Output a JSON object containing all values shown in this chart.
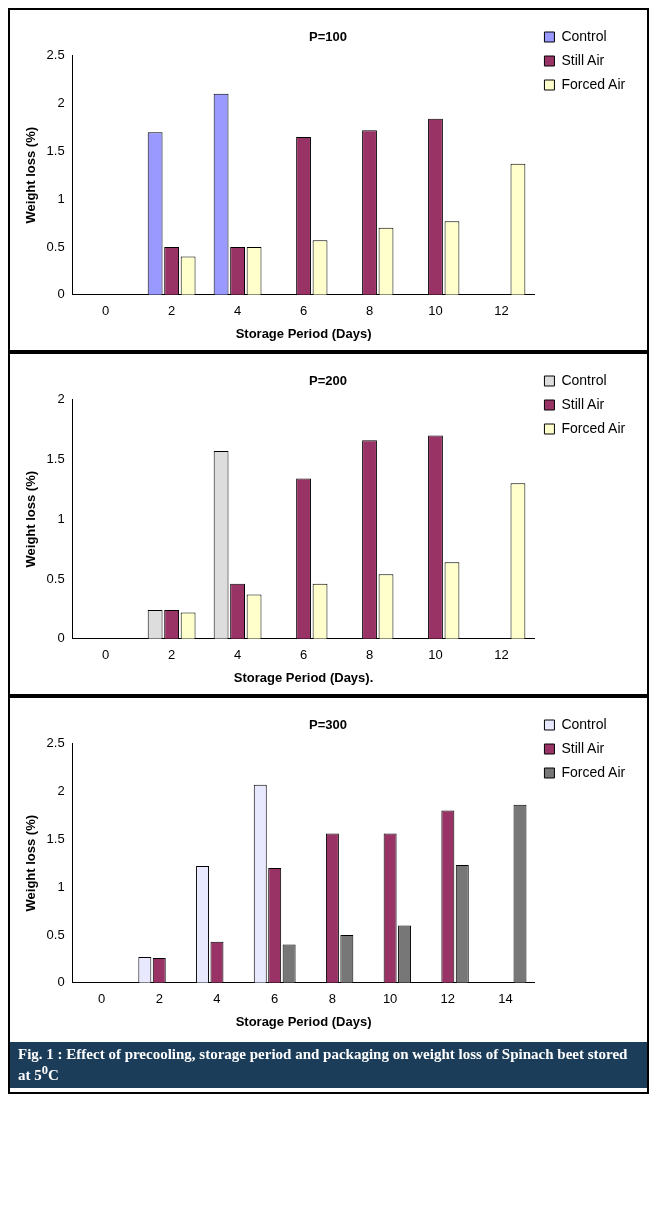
{
  "chart_data": [
    {
      "type": "bar",
      "title": "P=100",
      "xlabel": "Storage Period (Days)",
      "ylabel": "Weight loss (%)",
      "categories": [
        "0",
        "2",
        "4",
        "6",
        "8",
        "10",
        "12"
      ],
      "series": [
        {
          "name": "Control",
          "color": "#9999ff",
          "values": [
            null,
            1.7,
            2.1,
            null,
            null,
            null,
            null
          ]
        },
        {
          "name": "Still Air",
          "color": "#993366",
          "values": [
            null,
            0.5,
            0.5,
            1.65,
            1.72,
            1.84,
            null
          ]
        },
        {
          "name": "Forced Air",
          "color": "#ffffcc",
          "values": [
            null,
            0.4,
            0.5,
            0.57,
            0.7,
            0.77,
            1.37
          ]
        }
      ],
      "ylim": [
        0,
        2.5
      ],
      "yticks": [
        0,
        0.5,
        1,
        1.5,
        2,
        2.5
      ],
      "grid": false,
      "legend": "top right"
    },
    {
      "type": "bar",
      "title": "P=200",
      "xlabel": "Storage Period (Days).",
      "ylabel": "Weight loss (%)",
      "categories": [
        "0",
        "2",
        "4",
        "6",
        "8",
        "10",
        "12"
      ],
      "series": [
        {
          "name": "Control",
          "color": "#dddddd",
          "values": [
            null,
            0.24,
            1.57,
            null,
            null,
            null,
            null
          ]
        },
        {
          "name": "Still Air",
          "color": "#993366",
          "values": [
            null,
            0.24,
            0.46,
            1.34,
            1.66,
            1.7,
            null
          ]
        },
        {
          "name": "Forced Air",
          "color": "#ffffcc",
          "values": [
            null,
            0.22,
            0.37,
            0.46,
            0.54,
            0.64,
            1.3
          ]
        }
      ],
      "ylim": [
        0,
        2
      ],
      "yticks": [
        0,
        0.5,
        1,
        1.5,
        2
      ],
      "grid": false,
      "legend": "top right"
    },
    {
      "type": "bar",
      "title": "P=300",
      "xlabel": "Storage Period (Days)",
      "ylabel": "Weight loss (%)",
      "categories": [
        "0",
        "2",
        "4",
        "6",
        "8",
        "10",
        "12",
        "14"
      ],
      "series": [
        {
          "name": "Control",
          "color": "#e8e8ff",
          "values": [
            null,
            0.27,
            1.22,
            2.07,
            null,
            null,
            null,
            null
          ]
        },
        {
          "name": "Still Air",
          "color": "#993366",
          "values": [
            null,
            0.26,
            0.43,
            1.2,
            1.56,
            1.56,
            1.8,
            null
          ]
        },
        {
          "name": "Forced Air",
          "color": "#777777",
          "values": [
            null,
            null,
            null,
            0.4,
            0.5,
            0.6,
            1.23,
            1.86
          ]
        }
      ],
      "ylim": [
        0,
        2.5
      ],
      "yticks": [
        0,
        0.5,
        1,
        1.5,
        2,
        2.5
      ],
      "grid": false,
      "legend": "top right",
      "annotations": [
        "Fig. 1 :  Effect of precooling, storage period and packaging on weight loss of Spinach beet stored at 5$^{0}$C"
      ]
    }
  ]
}
